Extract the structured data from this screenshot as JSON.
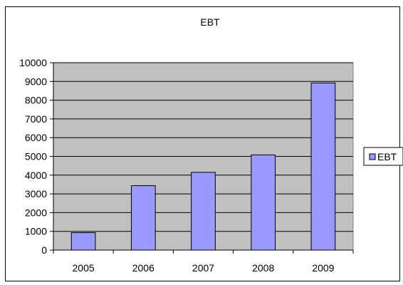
{
  "chart_data": {
    "type": "bar",
    "title": "EBT",
    "xlabel": "",
    "ylabel": "",
    "categories": [
      "2005",
      "2006",
      "2007",
      "2008",
      "2009"
    ],
    "series": [
      {
        "name": "EBT",
        "values": [
          930,
          3440,
          4150,
          5080,
          8920
        ],
        "color": "#9999ff"
      }
    ],
    "ylim": [
      0,
      10000
    ],
    "yticks": [
      "0",
      "1000",
      "2000",
      "3000",
      "4000",
      "5000",
      "6000",
      "7000",
      "8000",
      "9000",
      "10000"
    ],
    "grid": true,
    "legend": "right",
    "plot_background": "#c0c0c0"
  }
}
